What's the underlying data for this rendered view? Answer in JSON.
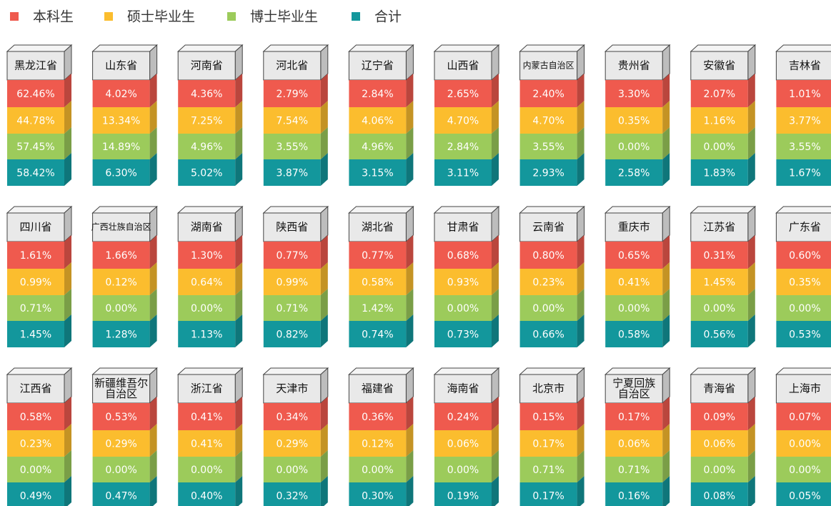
{
  "legend": [
    {
      "name": "本科生",
      "color": "#ef5a4e"
    },
    {
      "name": "硕士毕业生",
      "color": "#fbbd2e"
    },
    {
      "name": "博士毕业生",
      "color": "#9ccb5b"
    },
    {
      "name": "合计",
      "color": "#13979c"
    }
  ],
  "provinces": [
    {
      "name": [
        "黑龙江省"
      ],
      "values": [
        62.46,
        44.78,
        57.45,
        58.42
      ],
      "value_labels": [
        "62.46%",
        "44.78%",
        "57.45%",
        "58.42%"
      ]
    },
    {
      "name": [
        "山东省"
      ],
      "values": [
        4.02,
        13.34,
        14.89,
        6.3
      ],
      "value_labels": [
        "4.02%",
        "13.34%",
        "14.89%",
        "6.30%"
      ]
    },
    {
      "name": [
        "河南省"
      ],
      "values": [
        4.36,
        7.25,
        4.96,
        5.02
      ],
      "value_labels": [
        "4.36%",
        "7.25%",
        "4.96%",
        "5.02%"
      ]
    },
    {
      "name": [
        "河北省"
      ],
      "values": [
        2.79,
        7.54,
        3.55,
        3.87
      ],
      "value_labels": [
        "2.79%",
        "7.54%",
        "3.55%",
        "3.87%"
      ]
    },
    {
      "name": [
        "辽宁省"
      ],
      "values": [
        2.84,
        4.06,
        4.96,
        3.15
      ],
      "value_labels": [
        "2.84%",
        "4.06%",
        "4.96%",
        "3.15%"
      ]
    },
    {
      "name": [
        "山西省"
      ],
      "values": [
        2.65,
        4.7,
        2.84,
        3.11
      ],
      "value_labels": [
        "2.65%",
        "4.70%",
        "2.84%",
        "3.11%"
      ]
    },
    {
      "name": [
        "内蒙古自治区"
      ],
      "values": [
        2.4,
        4.7,
        3.55,
        2.93
      ],
      "value_labels": [
        "2.40%",
        "4.70%",
        "3.55%",
        "2.93%"
      ]
    },
    {
      "name": [
        "贵州省"
      ],
      "values": [
        3.3,
        0.35,
        0.0,
        2.58
      ],
      "value_labels": [
        "3.30%",
        "0.35%",
        "0.00%",
        "2.58%"
      ]
    },
    {
      "name": [
        "安徽省"
      ],
      "values": [
        2.07,
        1.16,
        0.0,
        1.83
      ],
      "value_labels": [
        "2.07%",
        "1.16%",
        "0.00%",
        "1.83%"
      ]
    },
    {
      "name": [
        "吉林省"
      ],
      "values": [
        1.01,
        3.77,
        3.55,
        1.67
      ],
      "value_labels": [
        "1.01%",
        "3.77%",
        "3.55%",
        "1.67%"
      ]
    },
    {
      "name": [
        "四川省"
      ],
      "values": [
        1.61,
        0.99,
        0.71,
        1.45
      ],
      "value_labels": [
        "1.61%",
        "0.99%",
        "0.71%",
        "1.45%"
      ]
    },
    {
      "name": [
        "广西壮族自治区"
      ],
      "values": [
        1.66,
        0.12,
        0.0,
        1.28
      ],
      "value_labels": [
        "1.66%",
        "0.12%",
        "0.00%",
        "1.28%"
      ]
    },
    {
      "name": [
        "湖南省"
      ],
      "values": [
        1.3,
        0.64,
        0.0,
        1.13
      ],
      "value_labels": [
        "1.30%",
        "0.64%",
        "0.00%",
        "1.13%"
      ]
    },
    {
      "name": [
        "陕西省"
      ],
      "values": [
        0.77,
        0.99,
        0.71,
        0.82
      ],
      "value_labels": [
        "0.77%",
        "0.99%",
        "0.71%",
        "0.82%"
      ]
    },
    {
      "name": [
        "湖北省"
      ],
      "values": [
        0.77,
        0.58,
        1.42,
        0.74
      ],
      "value_labels": [
        "0.77%",
        "0.58%",
        "1.42%",
        "0.74%"
      ]
    },
    {
      "name": [
        "甘肃省"
      ],
      "values": [
        0.68,
        0.93,
        0.0,
        0.73
      ],
      "value_labels": [
        "0.68%",
        "0.93%",
        "0.00%",
        "0.73%"
      ]
    },
    {
      "name": [
        "云南省"
      ],
      "values": [
        0.8,
        0.23,
        0.0,
        0.66
      ],
      "value_labels": [
        "0.80%",
        "0.23%",
        "0.00%",
        "0.66%"
      ]
    },
    {
      "name": [
        "重庆市"
      ],
      "values": [
        0.65,
        0.41,
        0.0,
        0.58
      ],
      "value_labels": [
        "0.65%",
        "0.41%",
        "0.00%",
        "0.58%"
      ]
    },
    {
      "name": [
        "江苏省"
      ],
      "values": [
        0.31,
        1.45,
        0.0,
        0.56
      ],
      "value_labels": [
        "0.31%",
        "1.45%",
        "0.00%",
        "0.56%"
      ]
    },
    {
      "name": [
        "广东省"
      ],
      "values": [
        0.6,
        0.35,
        0.0,
        0.53
      ],
      "value_labels": [
        "0.60%",
        "0.35%",
        "0.00%",
        "0.53%"
      ]
    },
    {
      "name": [
        "江西省"
      ],
      "values": [
        0.58,
        0.23,
        0.0,
        0.49
      ],
      "value_labels": [
        "0.58%",
        "0.23%",
        "0.00%",
        "0.49%"
      ]
    },
    {
      "name": [
        "新疆维吾尔",
        "自治区"
      ],
      "values": [
        0.53,
        0.29,
        0.0,
        0.47
      ],
      "value_labels": [
        "0.53%",
        "0.29%",
        "0.00%",
        "0.47%"
      ]
    },
    {
      "name": [
        "浙江省"
      ],
      "values": [
        0.41,
        0.41,
        0.0,
        0.4
      ],
      "value_labels": [
        "0.41%",
        "0.41%",
        "0.00%",
        "0.40%"
      ]
    },
    {
      "name": [
        "天津市"
      ],
      "values": [
        0.34,
        0.29,
        0.0,
        0.32
      ],
      "value_labels": [
        "0.34%",
        "0.29%",
        "0.00%",
        "0.32%"
      ]
    },
    {
      "name": [
        "福建省"
      ],
      "values": [
        0.36,
        0.12,
        0.0,
        0.3
      ],
      "value_labels": [
        "0.36%",
        "0.12%",
        "0.00%",
        "0.30%"
      ]
    },
    {
      "name": [
        "海南省"
      ],
      "values": [
        0.24,
        0.06,
        0.0,
        0.19
      ],
      "value_labels": [
        "0.24%",
        "0.06%",
        "0.00%",
        "0.19%"
      ]
    },
    {
      "name": [
        "北京市"
      ],
      "values": [
        0.15,
        0.17,
        0.71,
        0.17
      ],
      "value_labels": [
        "0.15%",
        "0.17%",
        "0.71%",
        "0.17%"
      ]
    },
    {
      "name": [
        "宁夏回族",
        "自治区"
      ],
      "values": [
        0.17,
        0.06,
        0.71,
        0.16
      ],
      "value_labels": [
        "0.17%",
        "0.06%",
        "0.71%",
        "0.16%"
      ]
    },
    {
      "name": [
        "青海省"
      ],
      "values": [
        0.09,
        0.06,
        0.0,
        0.08
      ],
      "value_labels": [
        "0.09%",
        "0.06%",
        "0.00%",
        "0.08%"
      ]
    },
    {
      "name": [
        "上海市"
      ],
      "values": [
        0.07,
        0.0,
        0.0,
        0.05
      ],
      "value_labels": [
        "0.07%",
        "0.00%",
        "0.00%",
        "0.05%"
      ]
    }
  ]
}
